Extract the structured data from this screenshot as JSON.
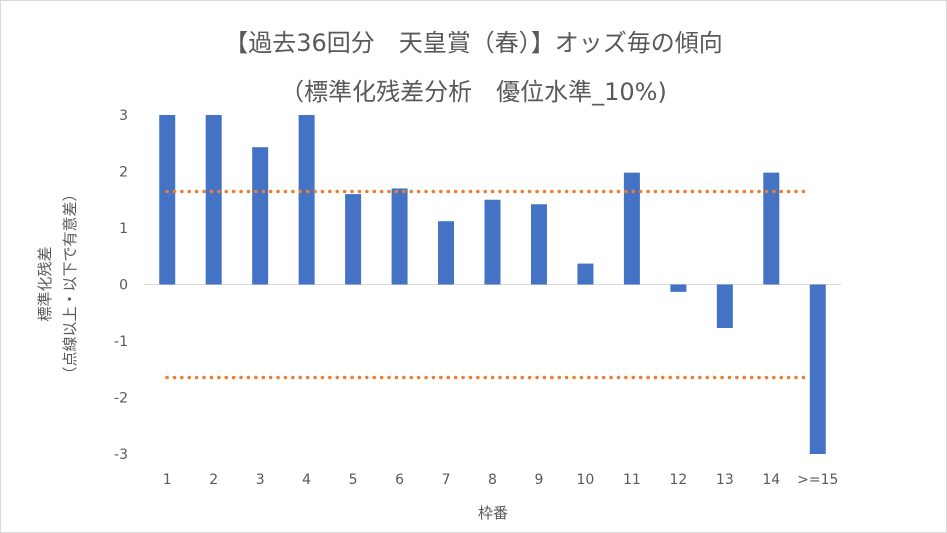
{
  "chart_data": {
    "type": "bar",
    "title": "【過去36回分　天皇賞（春）】オッズ毎の傾向",
    "subtitle": "（標準化残差分析　優位水準_10%)",
    "xlabel": "枠番",
    "ylabel_lines": [
      "標準化残差",
      "（点線以上・以下で有意差）"
    ],
    "categories": [
      "1",
      "2",
      "3",
      "4",
      "5",
      "6",
      "7",
      "8",
      "9",
      "10",
      "11",
      "12",
      "13",
      "14",
      ">=15"
    ],
    "values": [
      3.0,
      3.0,
      2.43,
      3.0,
      1.6,
      1.7,
      1.12,
      1.5,
      1.42,
      0.37,
      1.98,
      -0.13,
      -0.77,
      1.98,
      -3.0
    ],
    "ylim": [
      -3,
      3
    ],
    "yticks": [
      3,
      2,
      1,
      0,
      -1,
      -2,
      -3
    ],
    "threshold_lines": [
      1.645,
      -1.645
    ],
    "bar_color": "#4472c4",
    "threshold_color": "#ed7d31",
    "grid": false
  }
}
